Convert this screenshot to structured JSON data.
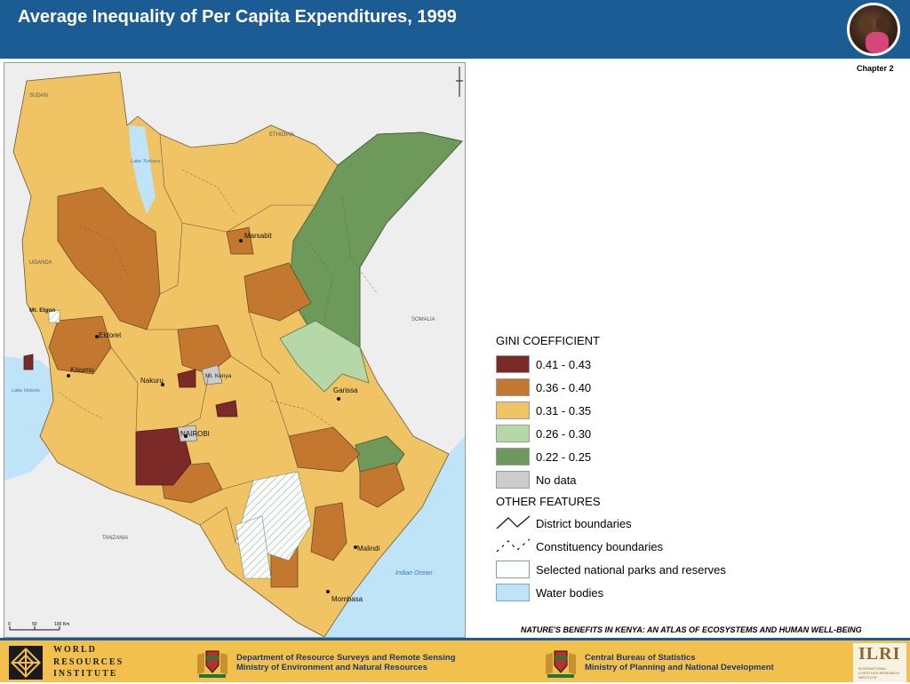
{
  "header": {
    "title": "Average Inequality of Per Capita Expenditures, 1999",
    "chapter": "Chapter 2"
  },
  "map": {
    "countries": [
      "SUDAN",
      "ETHIOPIA",
      "UGANDA",
      "SOMALIA",
      "TANZANIA"
    ],
    "water": [
      "Lake Turkana",
      "Lake Victoria",
      "Indian Ocean"
    ],
    "features": [
      "Mt. Elgon",
      "Mt. Kenya"
    ],
    "towns": [
      "Marsabit",
      "Eldoret",
      "Kisumu",
      "Nakuru",
      "NAIROBI",
      "Garissa",
      "Malindi",
      "Mombasa"
    ],
    "scale_labels": [
      "0",
      "50",
      "100 Km"
    ],
    "colors": {
      "gini_041_043": "#7b2a27",
      "gini_036_040": "#c4782f",
      "gini_031_035": "#f0c464",
      "gini_026_030": "#b6d7a8",
      "gini_022_025": "#6d9a5a",
      "no_data": "#cccccc",
      "water": "#bfe3f7",
      "land_outside": "#eeeeee"
    }
  },
  "legend": {
    "title": "GINI COEFFICIENT",
    "classes": [
      {
        "label": "0.41 - 0.43",
        "color": "#7b2a27"
      },
      {
        "label": "0.36 - 0.40",
        "color": "#c4782f"
      },
      {
        "label": "0.31 - 0.35",
        "color": "#f0c464"
      },
      {
        "label": "0.26 - 0.30",
        "color": "#b6d7a8"
      },
      {
        "label": "0.22 - 0.25",
        "color": "#6d9a5a"
      },
      {
        "label": "No data",
        "color": "#cccccc"
      }
    ],
    "other_title": "OTHER FEATURES",
    "other": [
      {
        "label": "District boundaries",
        "icon": "solid-line-icon"
      },
      {
        "label": "Constituency boundaries",
        "icon": "dashed-line-icon"
      },
      {
        "label": "Selected national parks and reserves",
        "icon": "park-hatch-icon"
      },
      {
        "label": "Water bodies",
        "icon": "water-icon"
      }
    ]
  },
  "caption": "NATURE'S BENEFITS IN KENYA: AN ATLAS OF ECOSYSTEMS AND HUMAN WELL-BEING",
  "footer": {
    "wri": [
      "WORLD",
      "RESOURCES",
      "INSTITUTE"
    ],
    "dept1": [
      "Department of Resource Surveys and Remote Sensing",
      "Ministry of Environment and Natural Resources"
    ],
    "dept2": [
      "Central Bureau of Statistics",
      "Ministry of Planning and National Development"
    ],
    "ilri": "ILRI",
    "ilri_sub": [
      "INTERNATIONAL",
      "LIVESTOCK RESEARCH",
      "INSTITUTE"
    ]
  }
}
